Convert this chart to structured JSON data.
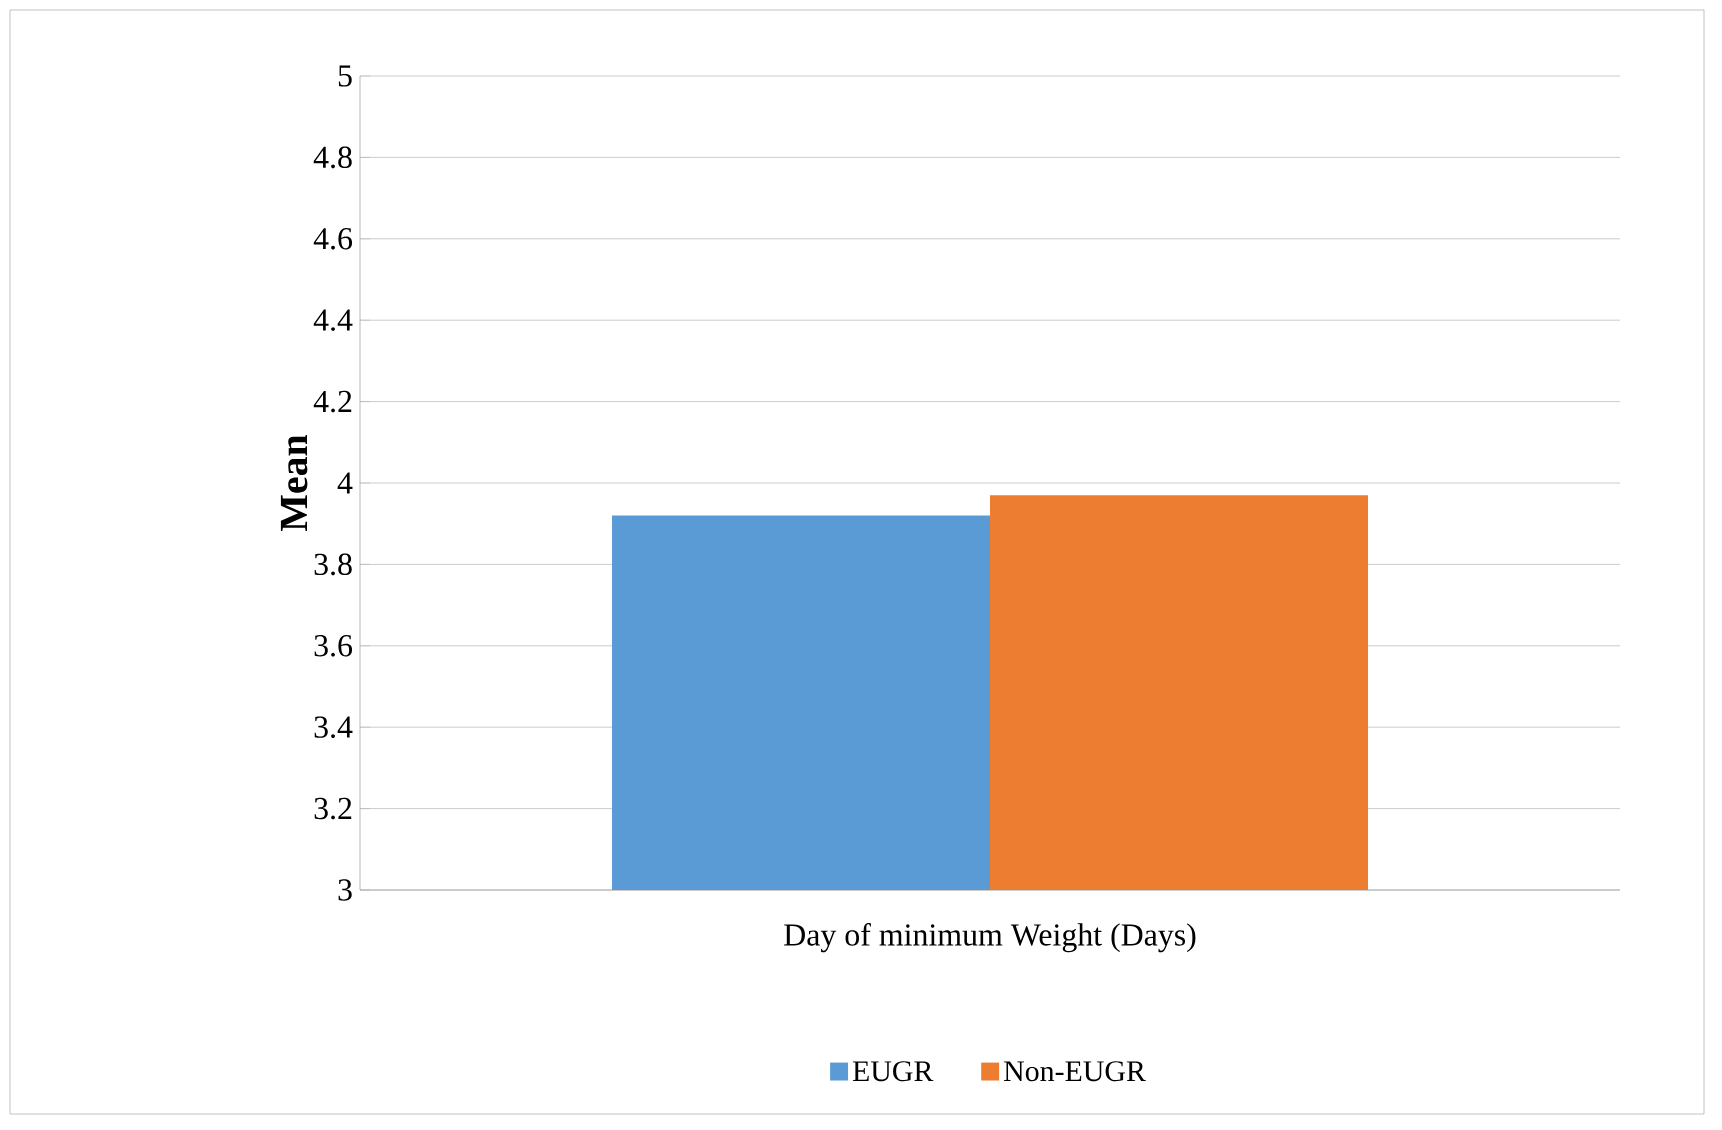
{
  "chart_data": {
    "type": "bar",
    "ylabel": "Mean",
    "categories": [
      "Day of minimum Weight (Days)"
    ],
    "series": [
      {
        "name": "EUGR",
        "color": "#5b9bd5",
        "values": [
          3.92
        ]
      },
      {
        "name": "Non-EUGR",
        "color": "#ed7d31",
        "values": [
          3.97
        ]
      }
    ],
    "ylim": [
      3,
      5
    ],
    "yticks": [
      3,
      3.2,
      3.4,
      3.6,
      3.8,
      4,
      4.2,
      4.4,
      4.6,
      4.8,
      5
    ],
    "grid": "y",
    "legend": "bottom"
  }
}
